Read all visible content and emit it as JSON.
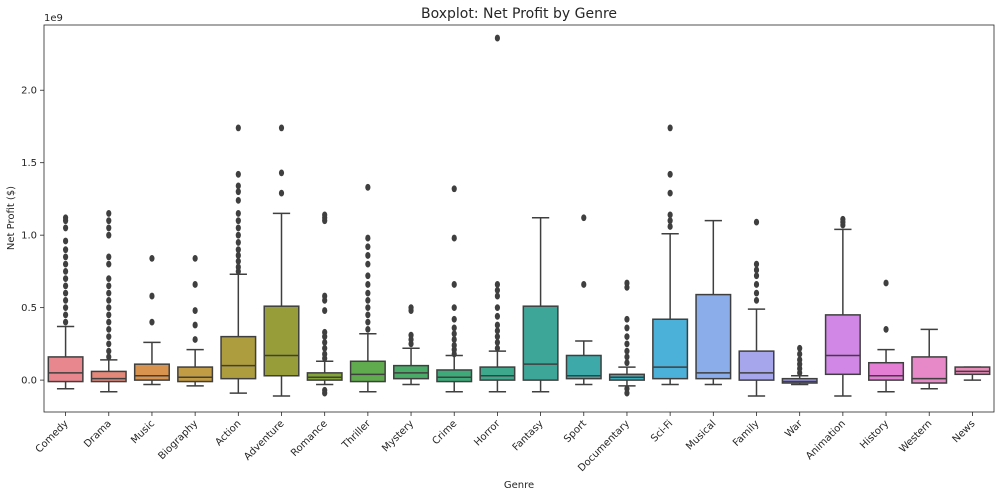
{
  "chart_data": {
    "type": "boxplot",
    "title": "Boxplot: Net Profit by Genre",
    "xlabel": "Genre",
    "ylabel": "Net Profit ($)",
    "y_offset_label": "1e9",
    "y_unit_scale": 1000000000,
    "ylim": [
      -0.22,
      2.45
    ],
    "yticks": [
      0.0,
      0.5,
      1.0,
      1.5,
      2.0
    ],
    "ytick_labels": [
      "0.0",
      "0.5",
      "1.0",
      "1.5",
      "2.0"
    ],
    "categories": [
      "Comedy",
      "Drama",
      "Music",
      "Biography",
      "Action",
      "Adventure",
      "Romance",
      "Thriller",
      "Mystery",
      "Crime",
      "Horror",
      "Fantasy",
      "Sport",
      "Documentary",
      "Sci-Fi",
      "Musical",
      "Family",
      "War",
      "Animation",
      "History",
      "Western",
      "News"
    ],
    "colors": [
      "#e8888e",
      "#e4897a",
      "#d8944f",
      "#c29b45",
      "#ad9d3f",
      "#979d38",
      "#83a437",
      "#61ab4f",
      "#4aab69",
      "#3eaa79",
      "#3da88b",
      "#3ea699",
      "#3ea9a9",
      "#3cabb8",
      "#4bb1d8",
      "#8badea",
      "#a6a6ec",
      "#9c97e6",
      "#d087e6",
      "#e47ed5",
      "#e788c8",
      "#e88bb7"
    ],
    "boxes": [
      {
        "genre": "Comedy",
        "whisker_low": -0.06,
        "q1": -0.01,
        "median": 0.05,
        "q3": 0.16,
        "whisker_high": 0.37,
        "outliers": [
          0.4,
          0.45,
          0.5,
          0.55,
          0.6,
          0.65,
          0.7,
          0.75,
          0.8,
          0.85,
          0.9,
          0.96,
          1.05,
          1.1,
          1.12
        ]
      },
      {
        "genre": "Drama",
        "whisker_low": -0.08,
        "q1": -0.01,
        "median": 0.01,
        "q3": 0.06,
        "whisker_high": 0.14,
        "outliers": [
          0.16,
          0.2,
          0.25,
          0.3,
          0.35,
          0.4,
          0.45,
          0.5,
          0.55,
          0.6,
          0.65,
          0.7,
          0.8,
          0.85,
          1.0,
          1.05,
          1.1,
          1.15
        ]
      },
      {
        "genre": "Music",
        "whisker_low": -0.03,
        "q1": 0.0,
        "median": 0.03,
        "q3": 0.11,
        "whisker_high": 0.26,
        "outliers": [
          0.4,
          0.58,
          0.84
        ]
      },
      {
        "genre": "Biography",
        "whisker_low": -0.04,
        "q1": -0.01,
        "median": 0.02,
        "q3": 0.09,
        "whisker_high": 0.21,
        "outliers": [
          0.28,
          0.38,
          0.48,
          0.66,
          0.84
        ]
      },
      {
        "genre": "Action",
        "whisker_low": -0.09,
        "q1": 0.01,
        "median": 0.1,
        "q3": 0.3,
        "whisker_high": 0.73,
        "outliers": [
          0.75,
          0.78,
          0.82,
          0.86,
          0.9,
          0.95,
          1.0,
          1.05,
          1.1,
          1.15,
          1.24,
          1.3,
          1.34,
          1.42,
          1.74
        ]
      },
      {
        "genre": "Adventure",
        "whisker_low": -0.11,
        "q1": 0.03,
        "median": 0.17,
        "q3": 0.51,
        "whisker_high": 1.15,
        "outliers": [
          1.29,
          1.43,
          1.74
        ]
      },
      {
        "genre": "Romance",
        "whisker_low": -0.03,
        "q1": 0.0,
        "median": 0.02,
        "q3": 0.05,
        "whisker_high": 0.13,
        "outliers": [
          -0.09,
          -0.07,
          0.15,
          0.18,
          0.22,
          0.26,
          0.3,
          0.33,
          0.48,
          0.55,
          0.58,
          1.1,
          1.12,
          1.14
        ]
      },
      {
        "genre": "Thriller",
        "whisker_low": -0.08,
        "q1": -0.01,
        "median": 0.04,
        "q3": 0.13,
        "whisker_high": 0.32,
        "outliers": [
          0.35,
          0.4,
          0.45,
          0.5,
          0.55,
          0.6,
          0.66,
          0.72,
          0.8,
          0.86,
          0.92,
          0.98,
          1.33
        ]
      },
      {
        "genre": "Mystery",
        "whisker_low": -0.03,
        "q1": 0.01,
        "median": 0.05,
        "q3": 0.1,
        "whisker_high": 0.22,
        "outliers": [
          0.25,
          0.28,
          0.31,
          0.48,
          0.5
        ]
      },
      {
        "genre": "Crime",
        "whisker_low": -0.08,
        "q1": -0.01,
        "median": 0.02,
        "q3": 0.07,
        "whisker_high": 0.17,
        "outliers": [
          0.18,
          0.21,
          0.24,
          0.28,
          0.32,
          0.36,
          0.42,
          0.5,
          0.66,
          0.98,
          1.32
        ]
      },
      {
        "genre": "Horror",
        "whisker_low": -0.08,
        "q1": 0.0,
        "median": 0.03,
        "q3": 0.09,
        "whisker_high": 0.2,
        "outliers": [
          0.22,
          0.26,
          0.3,
          0.34,
          0.38,
          0.44,
          0.5,
          0.58,
          0.62,
          0.66,
          2.36
        ]
      },
      {
        "genre": "Fantasy",
        "whisker_low": -0.08,
        "q1": 0.0,
        "median": 0.11,
        "q3": 0.51,
        "whisker_high": 1.12,
        "outliers": []
      },
      {
        "genre": "Sport",
        "whisker_low": -0.03,
        "q1": 0.01,
        "median": 0.03,
        "q3": 0.17,
        "whisker_high": 0.27,
        "outliers": [
          0.66,
          1.12
        ]
      },
      {
        "genre": "Documentary",
        "whisker_low": -0.04,
        "q1": 0.0,
        "median": 0.02,
        "q3": 0.04,
        "whisker_high": 0.09,
        "outliers": [
          -0.09,
          -0.06,
          0.12,
          0.16,
          0.2,
          0.25,
          0.3,
          0.36,
          0.42,
          0.64,
          0.67
        ]
      },
      {
        "genre": "Sci-Fi",
        "whisker_low": -0.03,
        "q1": 0.01,
        "median": 0.09,
        "q3": 0.42,
        "whisker_high": 1.01,
        "outliers": [
          1.06,
          1.1,
          1.14,
          1.29,
          1.42,
          1.74
        ]
      },
      {
        "genre": "Musical",
        "whisker_low": -0.03,
        "q1": 0.01,
        "median": 0.05,
        "q3": 0.59,
        "whisker_high": 1.1,
        "outliers": []
      },
      {
        "genre": "Family",
        "whisker_low": -0.11,
        "q1": 0.0,
        "median": 0.05,
        "q3": 0.2,
        "whisker_high": 0.49,
        "outliers": [
          0.55,
          0.6,
          0.66,
          0.72,
          0.76,
          0.8,
          1.09
        ]
      },
      {
        "genre": "War",
        "whisker_low": -0.03,
        "q1": -0.02,
        "median": -0.01,
        "q3": 0.01,
        "whisker_high": 0.03,
        "outliers": [
          0.05,
          0.08,
          0.11,
          0.14,
          0.18,
          0.22
        ]
      },
      {
        "genre": "Animation",
        "whisker_low": -0.11,
        "q1": 0.04,
        "median": 0.17,
        "q3": 0.45,
        "whisker_high": 1.04,
        "outliers": [
          1.07,
          1.09,
          1.11
        ]
      },
      {
        "genre": "History",
        "whisker_low": -0.08,
        "q1": 0.0,
        "median": 0.03,
        "q3": 0.12,
        "whisker_high": 0.21,
        "outliers": [
          0.35,
          0.67
        ]
      },
      {
        "genre": "Western",
        "whisker_low": -0.06,
        "q1": -0.02,
        "median": 0.01,
        "q3": 0.16,
        "whisker_high": 0.35,
        "outliers": []
      },
      {
        "genre": "News",
        "whisker_low": 0.0,
        "q1": 0.04,
        "median": 0.06,
        "q3": 0.09,
        "whisker_high": 0.09,
        "outliers": []
      }
    ]
  }
}
